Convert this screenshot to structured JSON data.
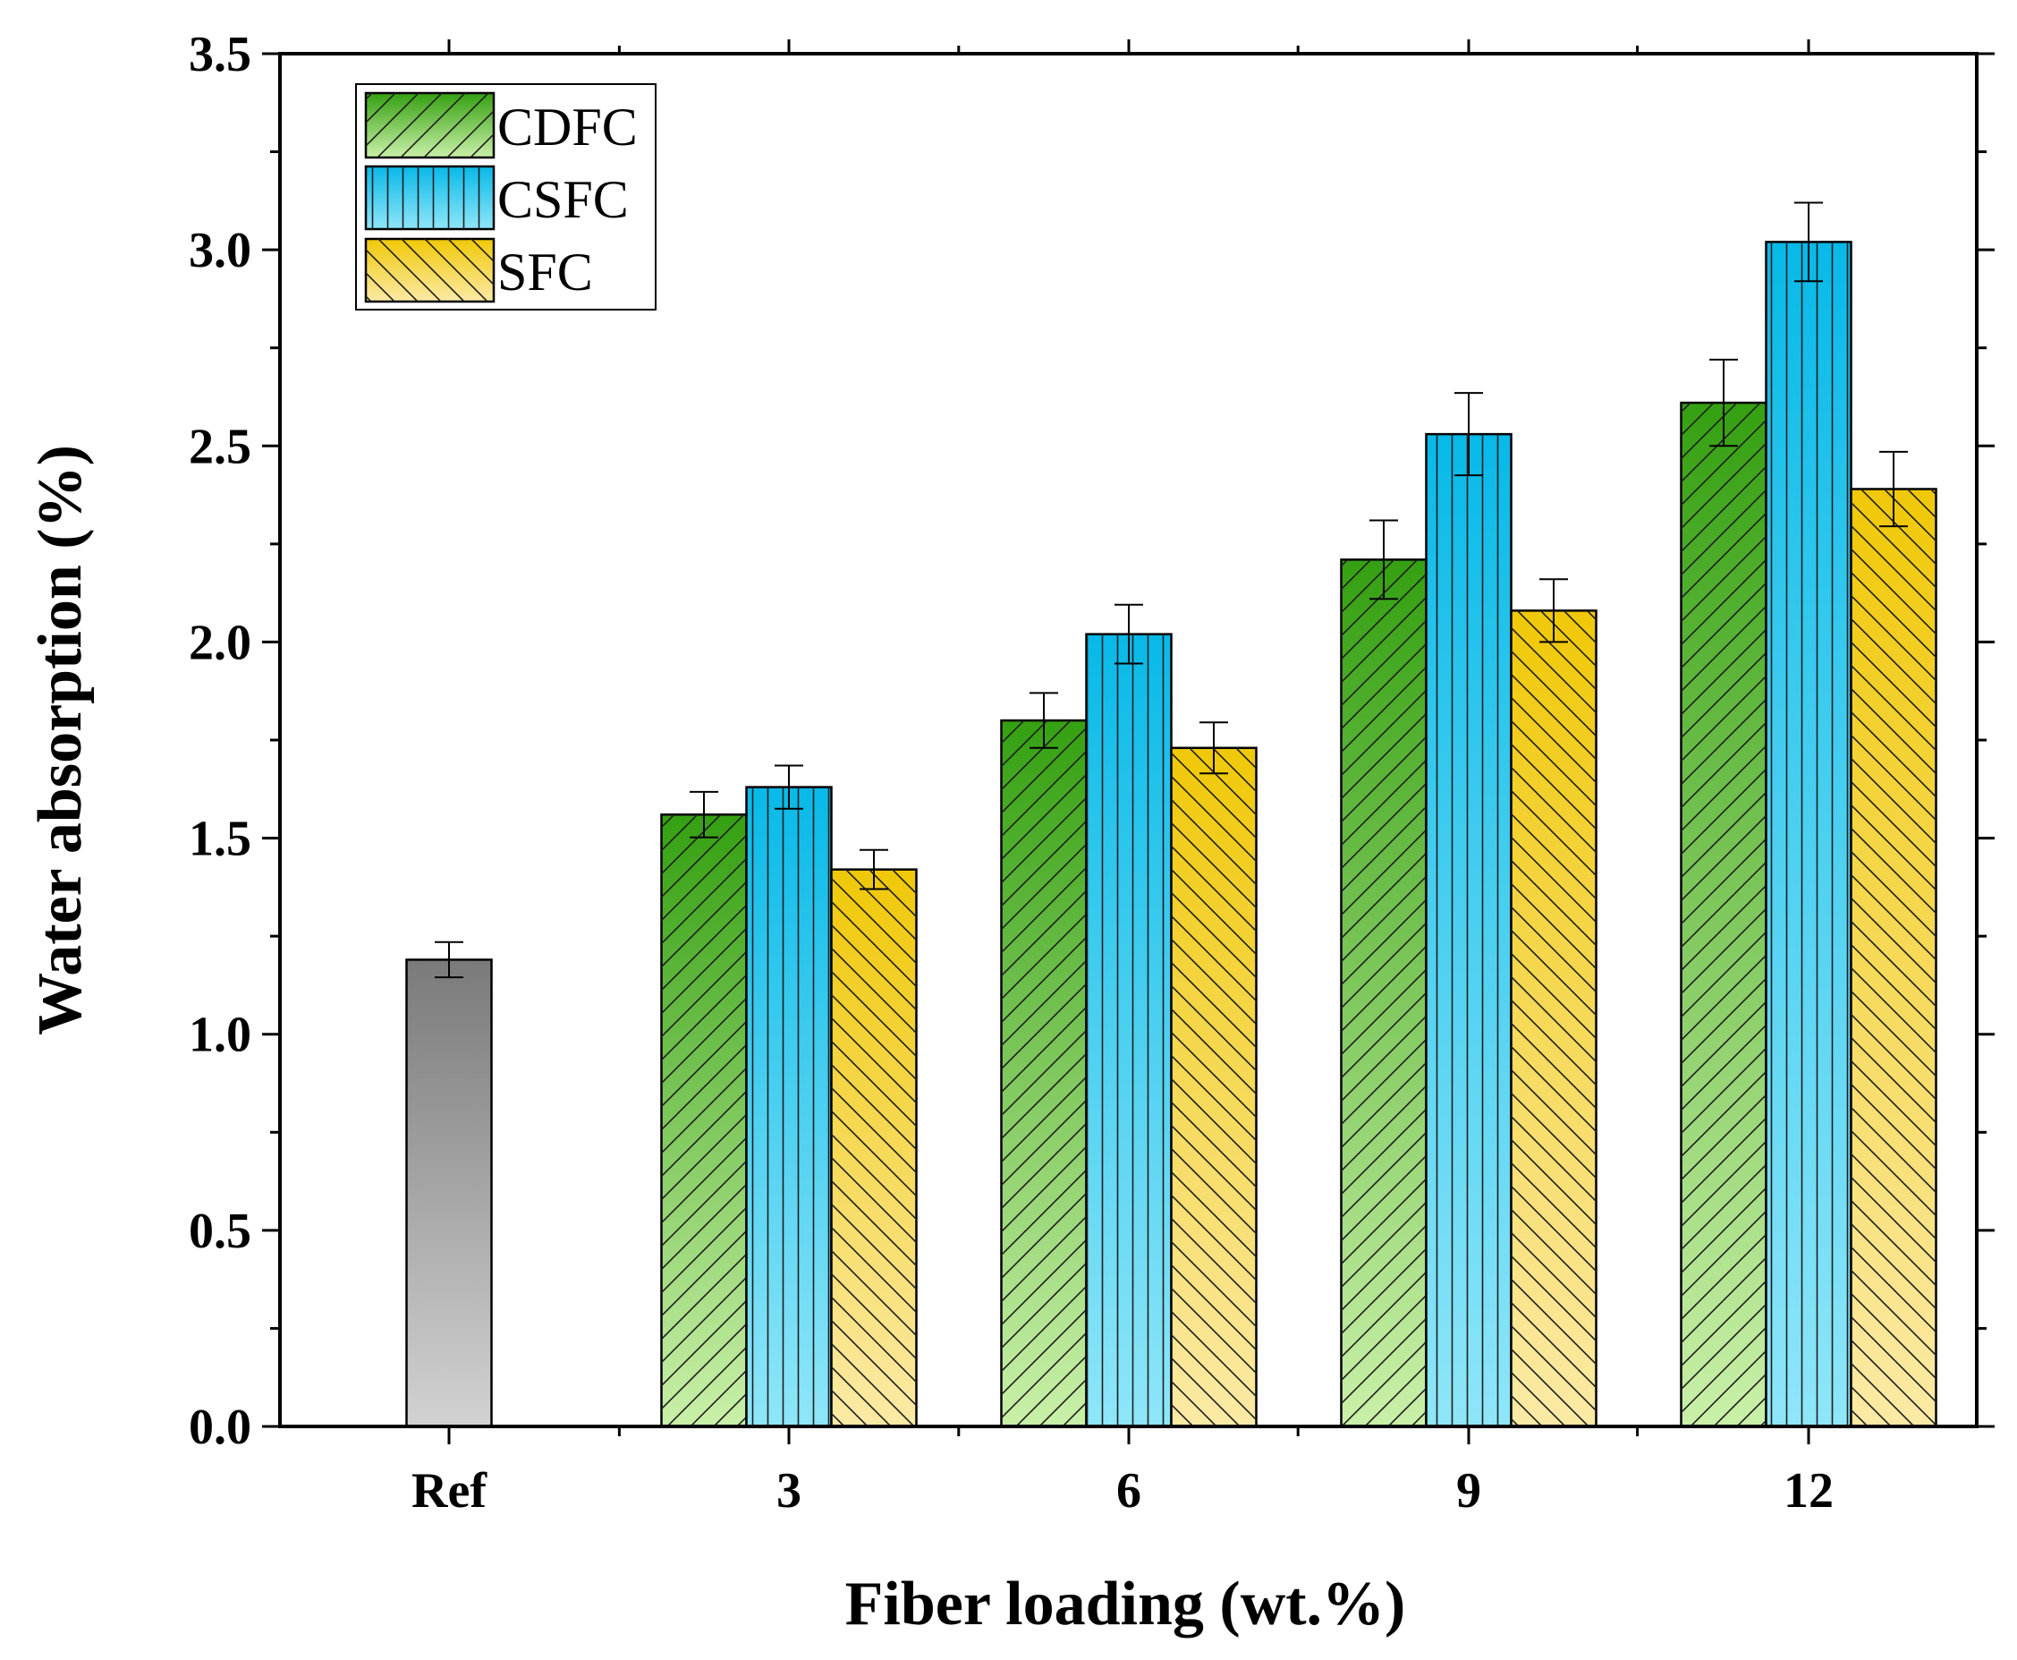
{
  "chart_data": {
    "type": "bar",
    "title": "",
    "xlabel": "Fiber loading (wt.%)",
    "ylabel": "Water absorption (%)",
    "ylim": [
      0,
      3.5
    ],
    "yticks": [
      "0.0",
      "0.5",
      "1.0",
      "1.5",
      "2.0",
      "2.5",
      "3.0",
      "3.5"
    ],
    "categories": [
      "Ref",
      "3",
      "6",
      "9",
      "12"
    ],
    "reference": {
      "name": "Ref",
      "value": 1.19,
      "error": 0.045,
      "color": "#808080"
    },
    "series": [
      {
        "name": "CDFC",
        "values": [
          null,
          1.56,
          1.8,
          2.21,
          2.61
        ],
        "errors": [
          null,
          0.058,
          0.07,
          0.1,
          0.11
        ],
        "color": "#3aa318",
        "hatch": "forward-diagonal"
      },
      {
        "name": "CSFC",
        "values": [
          null,
          1.63,
          2.02,
          2.53,
          3.02
        ],
        "errors": [
          null,
          0.055,
          0.075,
          0.105,
          0.1
        ],
        "color": "#14c0ea",
        "hatch": "vertical"
      },
      {
        "name": "SFC",
        "values": [
          null,
          1.42,
          1.73,
          2.08,
          2.39
        ],
        "errors": [
          null,
          0.05,
          0.065,
          0.08,
          0.095
        ],
        "color": "#f2cc0c",
        "hatch": "backward-diagonal"
      }
    ],
    "legend_position": "top-left",
    "grid": false
  }
}
